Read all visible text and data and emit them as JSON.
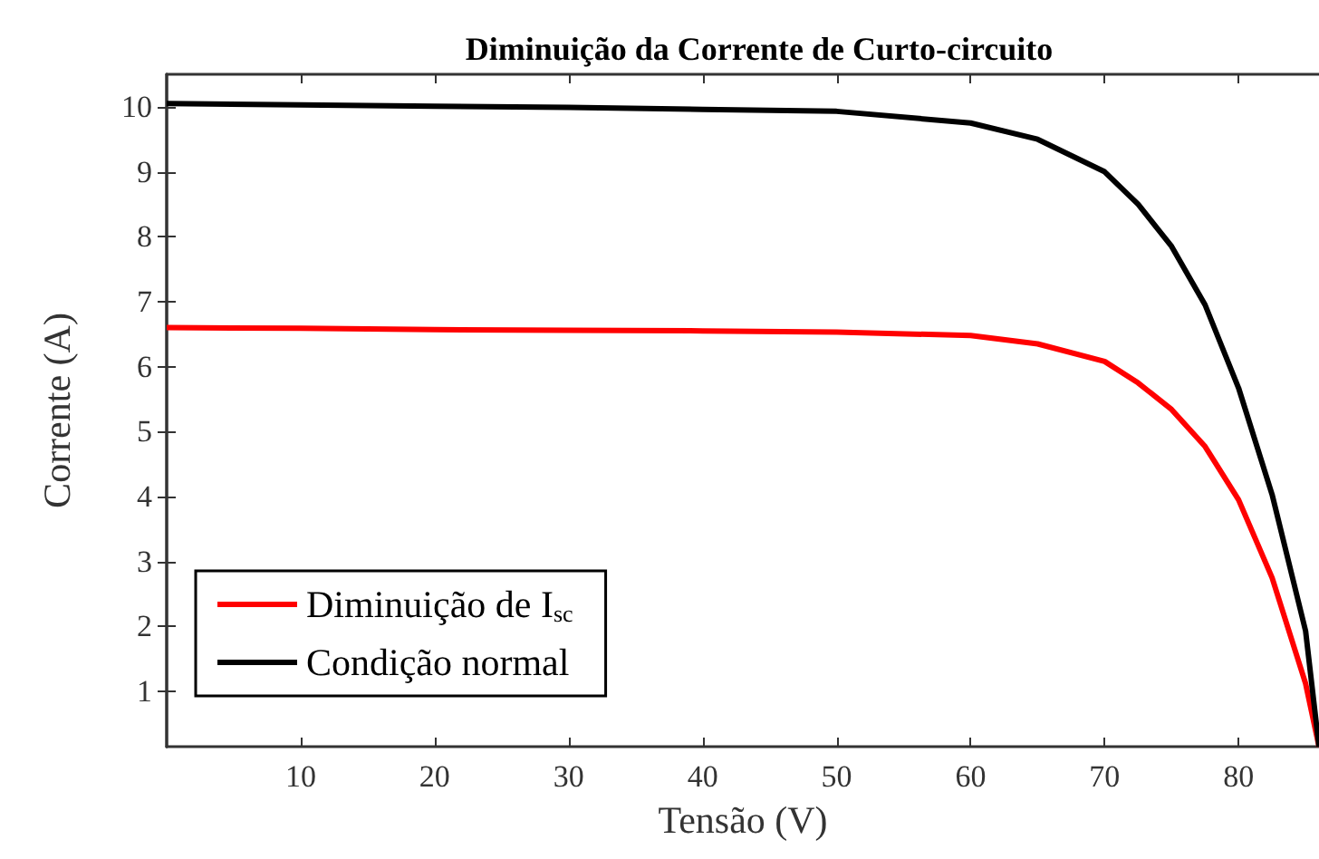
{
  "chart_data": {
    "type": "line",
    "title": "Diminuição da Corrente de Curto-circuito",
    "xlabel": "Tensão (V)",
    "ylabel": "Corrente (A)",
    "xlim": [
      0,
      86
    ],
    "xticks": [
      10,
      20,
      30,
      40,
      50,
      60,
      70,
      80
    ],
    "ylim": [
      0.15,
      10.5
    ],
    "yticks": [
      1,
      2,
      3,
      4,
      5,
      6,
      7,
      8,
      9,
      10
    ],
    "grid": false,
    "legend": "bottom left",
    "marker": "none",
    "line_style": "solid",
    "series": [
      {
        "name": "Diminuição de I$_{sc}$",
        "color": "#ff0000",
        "x": [
          0,
          10,
          20,
          30,
          40,
          50,
          60,
          65,
          70,
          72.5,
          75,
          77.5,
          80,
          82.5,
          85,
          86
        ],
        "values": [
          6.6,
          6.59,
          6.57,
          6.56,
          6.55,
          6.53,
          6.48,
          6.35,
          6.08,
          5.75,
          5.34,
          4.77,
          3.95,
          2.75,
          1.12,
          0.15
        ]
      },
      {
        "name": "Condição normal",
        "color": "#000000",
        "x": [
          0,
          10,
          20,
          30,
          40,
          50,
          60,
          65,
          70,
          72.5,
          75,
          77.5,
          80,
          82.5,
          85,
          86
        ],
        "values": [
          10.05,
          10.03,
          10.01,
          9.99,
          9.96,
          9.93,
          9.75,
          9.5,
          9.0,
          8.5,
          7.85,
          6.95,
          5.67,
          4.03,
          1.93,
          0.15
        ]
      }
    ]
  }
}
